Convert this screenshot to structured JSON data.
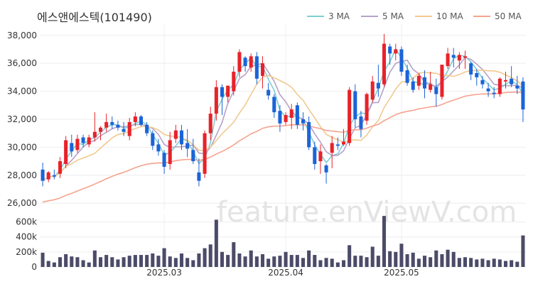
{
  "chart_data": {
    "type": "candlestick",
    "title": "에스앤에스텍(101490)",
    "watermark": "feature.enViewV.com",
    "legend": [
      {
        "name": "3 MA",
        "color": "#7ecfd5"
      },
      {
        "name": "5 MA",
        "color": "#b6a2c8"
      },
      {
        "name": "10 MA",
        "color": "#f2c98f"
      },
      {
        "name": "50 MA",
        "color": "#f6a38f"
      }
    ],
    "colors": {
      "up": "#e8222a",
      "down": "#1b64d8",
      "volume": "#4b4b69"
    },
    "price_axis": {
      "ylim": [
        25500,
        38800
      ],
      "ticks": [
        26000,
        28000,
        30000,
        32000,
        34000,
        36000,
        38000
      ],
      "tick_labels": [
        "26,000",
        "28,000",
        "30,000",
        "32,000",
        "34,000",
        "36,000",
        "38,000"
      ]
    },
    "volume_axis": {
      "ylim": [
        0,
        700000
      ],
      "ticks": [
        0,
        200000,
        400000,
        600000
      ],
      "tick_labels": [
        "0",
        "200k",
        "400k",
        "600k"
      ]
    },
    "x_ticks": [
      {
        "label": "2025.03",
        "index": 21
      },
      {
        "label": "2025.04",
        "index": 42
      },
      {
        "label": "2025.05",
        "index": 62
      }
    ],
    "candles": [
      [
        28400,
        28900,
        27200,
        27600,
        190000
      ],
      [
        27700,
        28300,
        27500,
        28200,
        80000
      ],
      [
        28000,
        28400,
        27700,
        27900,
        60000
      ],
      [
        28100,
        29300,
        27800,
        29000,
        130000
      ],
      [
        28800,
        30800,
        28500,
        30500,
        170000
      ],
      [
        30300,
        30900,
        29300,
        29700,
        140000
      ],
      [
        29800,
        30900,
        29600,
        30600,
        130000
      ],
      [
        30700,
        30900,
        30000,
        30300,
        90000
      ],
      [
        30200,
        30900,
        30000,
        30700,
        60000
      ],
      [
        30700,
        32500,
        30400,
        31100,
        220000
      ],
      [
        31100,
        31500,
        30500,
        31400,
        130000
      ],
      [
        31400,
        32400,
        31100,
        31800,
        160000
      ],
      [
        31800,
        32200,
        31300,
        31600,
        130000
      ],
      [
        31600,
        31900,
        31200,
        31400,
        100000
      ],
      [
        31300,
        31800,
        30800,
        31100,
        130000
      ],
      [
        30800,
        32100,
        30500,
        31800,
        150000
      ],
      [
        31800,
        32500,
        31500,
        32200,
        160000
      ],
      [
        32200,
        32300,
        31500,
        31600,
        160000
      ],
      [
        31600,
        31800,
        30800,
        31000,
        160000
      ],
      [
        31000,
        31200,
        29800,
        30100,
        180000
      ],
      [
        30200,
        30600,
        29400,
        29700,
        150000
      ],
      [
        29600,
        29800,
        28100,
        28600,
        250000
      ],
      [
        28800,
        31100,
        28400,
        30500,
        140000
      ],
      [
        30600,
        31600,
        30300,
        31200,
        120000
      ],
      [
        31200,
        31600,
        29800,
        30200,
        180000
      ],
      [
        30300,
        31300,
        29300,
        29900,
        120000
      ],
      [
        29800,
        30600,
        28800,
        29000,
        90000
      ],
      [
        28200,
        29200,
        27200,
        27600,
        180000
      ],
      [
        28100,
        31200,
        27800,
        31000,
        250000
      ],
      [
        31000,
        32900,
        30500,
        32400,
        300000
      ],
      [
        32400,
        34800,
        31900,
        34300,
        630000
      ],
      [
        34300,
        34500,
        32300,
        33600,
        200000
      ],
      [
        33600,
        34400,
        33200,
        34400,
        160000
      ],
      [
        34000,
        35800,
        33700,
        35400,
        330000
      ],
      [
        35400,
        37000,
        35000,
        36800,
        180000
      ],
      [
        36400,
        36500,
        35400,
        35800,
        140000
      ],
      [
        35700,
        36700,
        35400,
        36500,
        220000
      ],
      [
        36500,
        36800,
        34500,
        34900,
        140000
      ],
      [
        35100,
        36500,
        34200,
        36000,
        170000
      ],
      [
        34100,
        34600,
        33400,
        33700,
        110000
      ],
      [
        33600,
        33800,
        32100,
        32500,
        140000
      ],
      [
        32600,
        33000,
        31100,
        31700,
        150000
      ],
      [
        31800,
        32500,
        31600,
        32300,
        200000
      ],
      [
        32100,
        33100,
        31300,
        32700,
        160000
      ],
      [
        33000,
        33200,
        31300,
        31600,
        160000
      ],
      [
        32000,
        32500,
        31200,
        31700,
        120000
      ],
      [
        31800,
        32200,
        29800,
        30000,
        220000
      ],
      [
        30000,
        30400,
        28400,
        28800,
        160000
      ],
      [
        29000,
        30200,
        28100,
        29700,
        90000
      ],
      [
        28700,
        28800,
        27400,
        28200,
        120000
      ],
      [
        29600,
        30800,
        28500,
        30300,
        110000
      ],
      [
        30200,
        30700,
        29800,
        30100,
        60000
      ],
      [
        30200,
        31300,
        30100,
        30400,
        90000
      ],
      [
        30300,
        34300,
        30100,
        34100,
        290000
      ],
      [
        34000,
        34500,
        31400,
        32000,
        150000
      ],
      [
        32200,
        32600,
        30700,
        31300,
        150000
      ],
      [
        31900,
        33900,
        31600,
        33800,
        130000
      ],
      [
        33400,
        35100,
        33200,
        34700,
        270000
      ],
      [
        34600,
        35900,
        33600,
        34200,
        150000
      ],
      [
        34500,
        38100,
        34300,
        37400,
        680000
      ],
      [
        37200,
        37400,
        35900,
        36700,
        210000
      ],
      [
        36700,
        37400,
        36200,
        37000,
        200000
      ],
      [
        37000,
        37200,
        35100,
        35400,
        310000
      ],
      [
        35500,
        35900,
        34400,
        34600,
        170000
      ],
      [
        34700,
        35000,
        33900,
        34100,
        190000
      ],
      [
        34400,
        35300,
        34100,
        35100,
        110000
      ],
      [
        35000,
        35500,
        33500,
        34200,
        150000
      ],
      [
        34100,
        35400,
        33900,
        34500,
        130000
      ],
      [
        34300,
        34900,
        32900,
        33800,
        220000
      ],
      [
        33600,
        35900,
        33400,
        35900,
        170000
      ],
      [
        35800,
        37100,
        35600,
        36700,
        230000
      ],
      [
        36600,
        37100,
        35700,
        36400,
        200000
      ],
      [
        36200,
        36800,
        35600,
        36600,
        120000
      ],
      [
        36400,
        36900,
        35600,
        36500,
        130000
      ],
      [
        36000,
        36100,
        34800,
        35200,
        120000
      ],
      [
        35300,
        35600,
        34400,
        35000,
        100000
      ],
      [
        34800,
        35100,
        34200,
        34500,
        110000
      ],
      [
        34200,
        34600,
        33600,
        34000,
        90000
      ],
      [
        33900,
        34300,
        33500,
        33800,
        110000
      ],
      [
        33800,
        35000,
        33600,
        34900,
        100000
      ],
      [
        34700,
        35400,
        34200,
        34800,
        80000
      ],
      [
        34900,
        35800,
        34300,
        34500,
        90000
      ],
      [
        34400,
        35100,
        33800,
        34200,
        70000
      ],
      [
        34700,
        35000,
        31800,
        32700,
        420000
      ]
    ]
  }
}
